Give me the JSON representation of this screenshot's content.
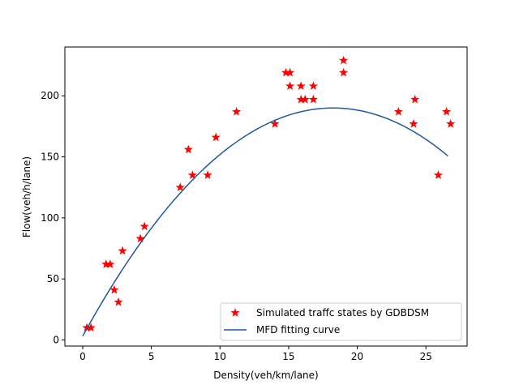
{
  "chart_data": {
    "type": "scatter",
    "xlabel": "Density(veh/km/lane)",
    "ylabel": "Flow(veh/h/lane)",
    "xlim": [
      -1.3,
      28.0
    ],
    "ylim": [
      -5,
      240
    ],
    "xticks": [
      0,
      5,
      10,
      15,
      20,
      25
    ],
    "yticks": [
      0,
      50,
      100,
      150,
      200
    ],
    "legend_position": "lower right",
    "series": [
      {
        "name": "Simulated traffc states by GDBDSM",
        "type": "scatter",
        "marker": "star",
        "color": "#ff0000",
        "points": [
          [
            0.3,
            10
          ],
          [
            0.6,
            10
          ],
          [
            1.7,
            62
          ],
          [
            2.0,
            62
          ],
          [
            2.3,
            41
          ],
          [
            2.6,
            31
          ],
          [
            2.9,
            73
          ],
          [
            4.2,
            83
          ],
          [
            4.5,
            93
          ],
          [
            7.1,
            125
          ],
          [
            7.7,
            156
          ],
          [
            8.0,
            135
          ],
          [
            9.1,
            135
          ],
          [
            9.7,
            166
          ],
          [
            11.2,
            187
          ],
          [
            14.0,
            177
          ],
          [
            14.8,
            219
          ],
          [
            15.1,
            219
          ],
          [
            15.1,
            208
          ],
          [
            15.9,
            208
          ],
          [
            15.9,
            197
          ],
          [
            16.2,
            197
          ],
          [
            16.8,
            208
          ],
          [
            16.8,
            197
          ],
          [
            19.0,
            229
          ],
          [
            19.0,
            219
          ],
          [
            23.0,
            187
          ],
          [
            24.1,
            177
          ],
          [
            24.2,
            197
          ],
          [
            25.9,
            135
          ],
          [
            26.5,
            187
          ],
          [
            26.8,
            177
          ]
        ]
      },
      {
        "name": "MFD fitting curve",
        "type": "line",
        "color": "#1f57a0",
        "quadratic_fit": {
          "a": -0.562,
          "b": 20.5,
          "c": 3.1
        },
        "x_range": [
          0.0,
          26.6
        ]
      }
    ],
    "legend_labels": [
      "Simulated traffc states by GDBDSM",
      "MFD fitting curve"
    ]
  }
}
